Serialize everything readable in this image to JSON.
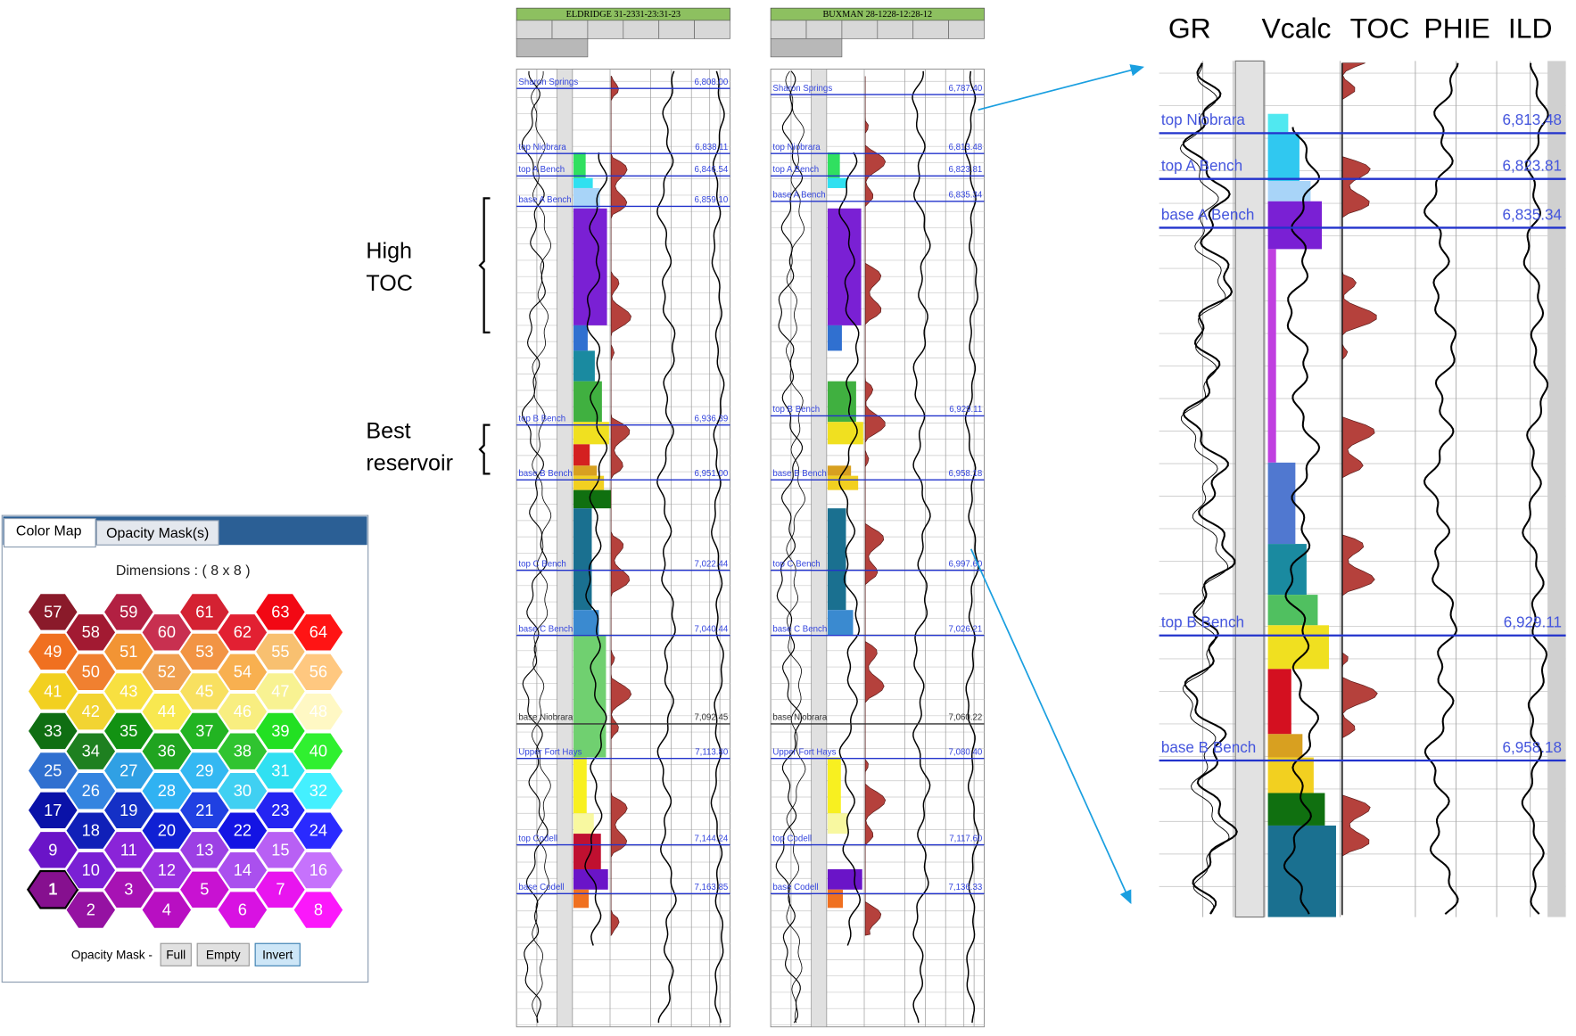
{
  "panel": {
    "tabs": [
      "Color Map",
      "Opacity Mask(s)"
    ],
    "dimensions": "Dimensions :  ( 8 x 8 )",
    "cells": [
      {
        "label": "1",
        "color": "#86108f",
        "selected": true
      },
      {
        "label": "2",
        "color": "#9512a2"
      },
      {
        "label": "3",
        "color": "#a712b4"
      },
      {
        "label": "4",
        "color": "#b80fc2"
      },
      {
        "label": "5",
        "color": "#c812d2"
      },
      {
        "label": "6",
        "color": "#d812e2"
      },
      {
        "label": "7",
        "color": "#e815ef"
      },
      {
        "label": "8",
        "color": "#fb18fb"
      },
      {
        "label": "9",
        "color": "#6a14c8"
      },
      {
        "label": "10",
        "color": "#7a20d4"
      },
      {
        "label": "11",
        "color": "#8a24d8"
      },
      {
        "label": "12",
        "color": "#9a30e0"
      },
      {
        "label": "13",
        "color": "#9c40e4"
      },
      {
        "label": "14",
        "color": "#aa50ee"
      },
      {
        "label": "15",
        "color": "#b860f4"
      },
      {
        "label": "16",
        "color": "#c672fc"
      },
      {
        "label": "17",
        "color": "#0a12a8"
      },
      {
        "label": "18",
        "color": "#1020b8"
      },
      {
        "label": "19",
        "color": "#1430c6"
      },
      {
        "label": "20",
        "color": "#1020d4"
      },
      {
        "label": "21",
        "color": "#2040e2"
      },
      {
        "label": "22",
        "color": "#1414e4"
      },
      {
        "label": "23",
        "color": "#2424f2"
      },
      {
        "label": "24",
        "color": "#2a2aff"
      },
      {
        "label": "25",
        "color": "#3070d0"
      },
      {
        "label": "26",
        "color": "#3484e0"
      },
      {
        "label": "27",
        "color": "#30a0e4"
      },
      {
        "label": "28",
        "color": "#30b2f2"
      },
      {
        "label": "29",
        "color": "#34b8f2"
      },
      {
        "label": "30",
        "color": "#40d0f2"
      },
      {
        "label": "31",
        "color": "#30e0f2"
      },
      {
        "label": "32",
        "color": "#44f0ff"
      },
      {
        "label": "33",
        "color": "#0f6e12"
      },
      {
        "label": "34",
        "color": "#1e8020"
      },
      {
        "label": "35",
        "color": "#129212"
      },
      {
        "label": "36",
        "color": "#20a420"
      },
      {
        "label": "37",
        "color": "#22b422"
      },
      {
        "label": "38",
        "color": "#30c430"
      },
      {
        "label": "39",
        "color": "#22e022"
      },
      {
        "label": "40",
        "color": "#30f030"
      },
      {
        "label": "41",
        "color": "#f2d020"
      },
      {
        "label": "42",
        "color": "#f2d432"
      },
      {
        "label": "43",
        "color": "#f8e040"
      },
      {
        "label": "44",
        "color": "#f8e850"
      },
      {
        "label": "45",
        "color": "#f8e060"
      },
      {
        "label": "46",
        "color": "#f8ee80"
      },
      {
        "label": "47",
        "color": "#f8f292"
      },
      {
        "label": "48",
        "color": "#fff8c4"
      },
      {
        "label": "49",
        "color": "#f07020"
      },
      {
        "label": "50",
        "color": "#f08030"
      },
      {
        "label": "51",
        "color": "#f29434"
      },
      {
        "label": "52",
        "color": "#f0a050"
      },
      {
        "label": "53",
        "color": "#f29444"
      },
      {
        "label": "54",
        "color": "#f8b050"
      },
      {
        "label": "55",
        "color": "#f8c070"
      },
      {
        "label": "56",
        "color": "#ffc880"
      },
      {
        "label": "57",
        "color": "#8a1a2a"
      },
      {
        "label": "58",
        "color": "#a21a32"
      },
      {
        "label": "59",
        "color": "#b22042"
      },
      {
        "label": "60",
        "color": "#c83050"
      },
      {
        "label": "61",
        "color": "#d42232"
      },
      {
        "label": "62",
        "color": "#e22032"
      },
      {
        "label": "63",
        "color": "#f20814"
      },
      {
        "label": "64",
        "color": "#ff1414"
      }
    ],
    "mask_label": "Opacity Mask -",
    "buttons": [
      "Full",
      "Empty",
      "Invert"
    ]
  },
  "annotations": [
    "High",
    "TOC",
    "Best",
    "reservoir"
  ],
  "wells": [
    {
      "name": "ELDRIDGE 31-2331-23:31-23",
      "tops": [
        {
          "name": "Sharon Springs",
          "depth": "6,808.00"
        },
        {
          "name": "top Niobrara",
          "depth": "6,838.11"
        },
        {
          "name": "top A Bench",
          "depth": "6,846.54"
        },
        {
          "name": "base A Bench",
          "depth": "6,859.10"
        },
        {
          "name": "top B Bench",
          "depth": "6,936.39"
        },
        {
          "name": "base B Bench",
          "depth": "6,951.00"
        },
        {
          "name": "top C Bench",
          "depth": "7,022.44"
        },
        {
          "name": "base C Bench",
          "depth": "7,040.44"
        },
        {
          "name": "base Niobrara",
          "depth": "7,092.45"
        },
        {
          "name": "Upper Fort Hays",
          "depth": "7,113.80"
        },
        {
          "name": "top Codell",
          "depth": "7,144.24"
        },
        {
          "name": "base Codell",
          "depth": "7,163.85"
        }
      ]
    },
    {
      "name": "BUXMAN 28-1228-12:28-12",
      "tops": [
        {
          "name": "Sharon Springs",
          "depth": "6,787.40"
        },
        {
          "name": "top Niobrara",
          "depth": "6,813.48"
        },
        {
          "name": "top A Bench",
          "depth": "6,823.81"
        },
        {
          "name": "base A Bench",
          "depth": "6,835.34"
        },
        {
          "name": "top B Bench",
          "depth": "6,929.11"
        },
        {
          "name": "base B Bench",
          "depth": "6,958.18"
        },
        {
          "name": "top C Bench",
          "depth": "6,997.60"
        },
        {
          "name": "base C Bench",
          "depth": "7,026.21"
        },
        {
          "name": "base Niobrara",
          "depth": "7,060.22"
        },
        {
          "name": "Upper Fort Hays",
          "depth": "7,080.40"
        },
        {
          "name": "top Codell",
          "depth": "7,117.60"
        },
        {
          "name": "base Codell",
          "depth": "7,136.33"
        }
      ]
    }
  ],
  "zoom": {
    "headers": [
      "GR",
      "Vcalc",
      "TOC",
      "PHIE",
      "ILD"
    ],
    "tops": [
      {
        "name": "top Niobrara",
        "depth": "6,813.48"
      },
      {
        "name": "top A Bench",
        "depth": "6,823.81"
      },
      {
        "name": "base A Bench",
        "depth": "6,835.34"
      },
      {
        "name": "top B Bench",
        "depth": "6,929.11"
      },
      {
        "name": "base B Bench",
        "depth": "6,958.18"
      }
    ]
  }
}
